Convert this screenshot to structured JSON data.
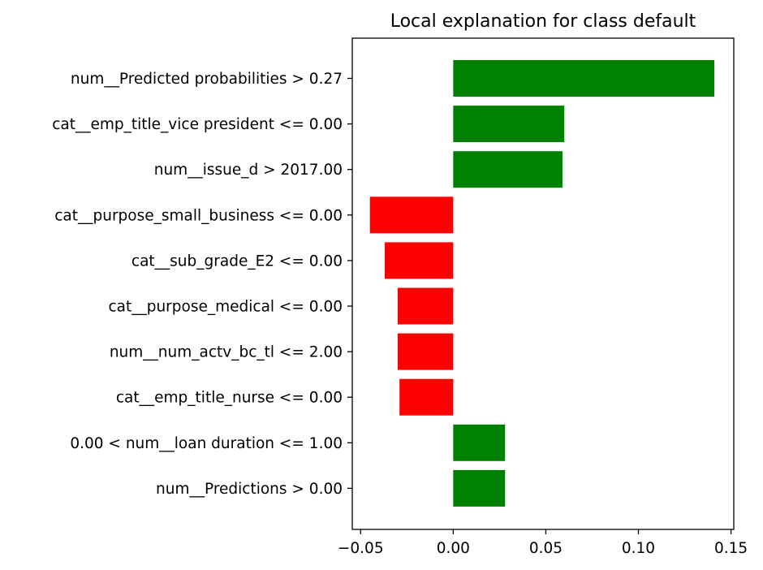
{
  "chart_data": {
    "type": "bar",
    "orientation": "horizontal",
    "title": "Local explanation for class default",
    "xlabel": "",
    "ylabel": "",
    "categories": [
      "num__Predicted probabilities > 0.27",
      "cat__emp_title_vice president <= 0.00",
      "num__issue_d > 2017.00",
      "cat__purpose_small_business <= 0.00",
      "cat__sub_grade_E2 <= 0.00",
      "cat__purpose_medical <= 0.00",
      "num__num_actv_bc_tl <= 2.00",
      "cat__emp_title_nurse <= 0.00",
      "0.00 < num__loan duration <= 1.00",
      "num__Predictions > 0.00"
    ],
    "values": [
      0.141,
      0.06,
      0.059,
      -0.045,
      -0.037,
      -0.03,
      -0.03,
      -0.029,
      0.028,
      0.028
    ],
    "xlim": [
      -0.0545,
      0.1515
    ],
    "xticks": [
      -0.05,
      0.0,
      0.05,
      0.1,
      0.15
    ],
    "xtick_labels": [
      "−0.05",
      "0.00",
      "0.05",
      "0.10",
      "0.15"
    ],
    "grid": false,
    "colors": {
      "positive": "#008000",
      "negative": "#ff0000",
      "axis": "#000000"
    }
  }
}
